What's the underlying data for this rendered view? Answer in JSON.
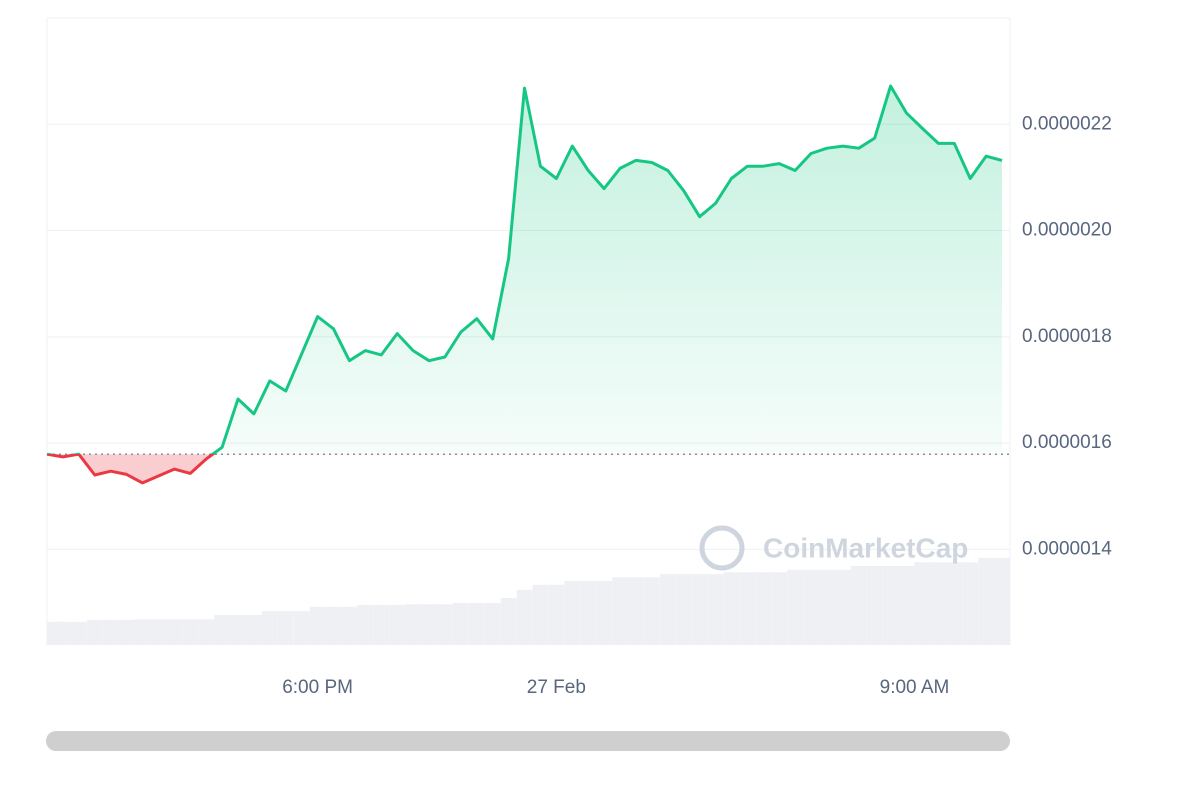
{
  "chart_data": {
    "type": "line",
    "x": [
      11.2,
      11.6,
      12.0,
      12.4,
      12.8,
      13.2,
      13.6,
      14.0,
      14.4,
      14.8,
      15.2,
      15.6,
      16.0,
      16.4,
      16.8,
      17.2,
      17.6,
      18.0,
      18.4,
      18.8,
      19.2,
      19.6,
      20.0,
      20.4,
      20.8,
      21.2,
      21.6,
      22.0,
      22.4,
      22.8,
      23.2,
      23.6,
      24.0,
      24.4,
      24.8,
      25.2,
      25.6,
      26.0,
      26.4,
      26.8,
      27.2,
      27.6,
      28.0,
      28.4,
      28.8,
      29.2,
      29.6,
      30.0,
      30.4,
      30.8,
      31.2,
      31.6,
      32.0,
      32.4,
      32.8,
      33.2,
      33.6,
      34.0,
      34.4,
      34.8,
      35.2
    ],
    "values": [
      1.579e-06,
      1.574e-06,
      1.579e-06,
      1.54e-06,
      1.547e-06,
      1.541e-06,
      1.525e-06,
      1.538e-06,
      1.551e-06,
      1.543e-06,
      1.57e-06,
      1.592e-06,
      1.683e-06,
      1.655e-06,
      1.717e-06,
      1.698e-06,
      1.768e-06,
      1.838e-06,
      1.815e-06,
      1.755e-06,
      1.774e-06,
      1.766e-06,
      1.806e-06,
      1.774e-06,
      1.755e-06,
      1.762e-06,
      1.809e-06,
      1.834e-06,
      1.796e-06,
      1.947e-06,
      2.268e-06,
      2.121e-06,
      2.098e-06,
      2.159e-06,
      2.113e-06,
      2.079e-06,
      2.117e-06,
      2.132e-06,
      2.128e-06,
      2.113e-06,
      2.075e-06,
      2.026e-06,
      2.051e-06,
      2.098e-06,
      2.121e-06,
      2.121e-06,
      2.126e-06,
      2.113e-06,
      2.145e-06,
      2.155e-06,
      2.159e-06,
      2.155e-06,
      2.174e-06,
      2.272e-06,
      2.221e-06,
      2.192e-06,
      2.164e-06,
      2.164e-06,
      2.098e-06,
      2.14e-06,
      2.132e-06
    ],
    "volume": [
      3.7,
      3.7,
      3.7,
      4.0,
      4.0,
      4.0,
      4.1,
      4.1,
      4.1,
      4.1,
      4.1,
      4.8,
      4.8,
      4.8,
      5.4,
      5.4,
      5.4,
      6.1,
      6.1,
      6.1,
      6.4,
      6.4,
      6.4,
      6.5,
      6.5,
      6.5,
      6.7,
      6.7,
      6.7,
      7.5,
      8.8,
      9.6,
      9.6,
      10.2,
      10.2,
      10.2,
      10.8,
      10.8,
      10.8,
      11.3,
      11.3,
      11.3,
      11.3,
      11.6,
      11.6,
      11.6,
      11.6,
      12.0,
      12.0,
      12.0,
      12.0,
      12.6,
      12.6,
      12.6,
      12.6,
      13.2,
      13.2,
      13.2,
      13.2,
      13.9,
      13.9
    ],
    "vlim": [
      0,
      100
    ],
    "up_color": "#16c784",
    "down_color": "#ea3943",
    "volume_color": "#eef0f4",
    "xlim": [
      11.2,
      35.4
    ],
    "xticks": [
      {
        "value": 18,
        "label": "6:00 PM"
      },
      {
        "value": 24,
        "label": "27 Feb"
      },
      {
        "value": 33,
        "label": "9:00 AM"
      }
    ],
    "ylim": [
      1.22e-06,
      2.4e-06
    ],
    "yticks": [
      1.4e-06,
      1.6e-06,
      1.8e-06,
      {
        "value": 2e-06,
        "label": "0.0000020"
      },
      2.2e-06
    ],
    "grid": true,
    "watermark": "CoinMarketCap"
  }
}
